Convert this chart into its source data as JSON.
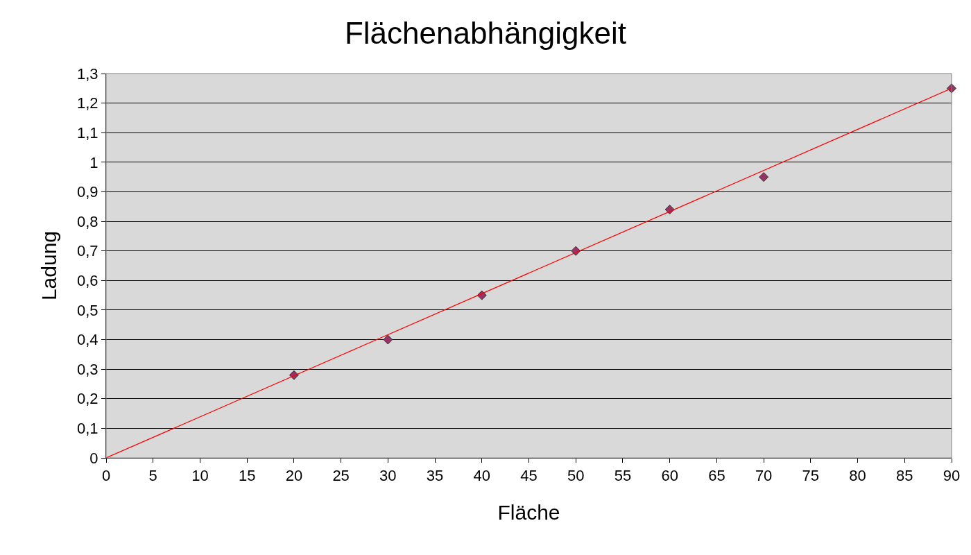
{
  "chart_data": {
    "type": "scatter",
    "title": "Flächenabhängigkeit",
    "xlabel": "Fläche",
    "ylabel": "Ladung",
    "series": [
      {
        "color": "#993366",
        "marker": "diamond",
        "x": [
          20,
          30,
          40,
          50,
          60,
          70,
          90
        ],
        "values": [
          0.28,
          0.4,
          0.55,
          0.7,
          0.84,
          0.95,
          1.25
        ]
      },
      {
        "type": "line",
        "color": "#ff0000",
        "marker": "none",
        "line_style": "solid",
        "x": [
          0,
          90
        ],
        "values": [
          0,
          1.25
        ]
      }
    ],
    "xlim": [
      0,
      90
    ],
    "xticks": [
      0,
      5,
      10,
      15,
      20,
      25,
      30,
      35,
      40,
      45,
      50,
      55,
      60,
      65,
      70,
      75,
      80,
      85,
      90
    ],
    "ylim": [
      0,
      1.3
    ],
    "yticks": [
      0,
      {
        "value": 0.1,
        "label": "0,1"
      },
      {
        "value": 0.2,
        "label": "0,2"
      },
      {
        "value": 0.3,
        "label": "0,3"
      },
      {
        "value": 0.4,
        "label": "0,4"
      },
      {
        "value": 0.5,
        "label": "0,5"
      },
      {
        "value": 0.6,
        "label": "0,6"
      },
      {
        "value": 0.7,
        "label": "0,7"
      },
      {
        "value": 0.8,
        "label": "0,8"
      },
      {
        "value": 0.9,
        "label": "0,9"
      },
      1,
      {
        "value": 1.1,
        "label": "1,1"
      },
      {
        "value": 1.2,
        "label": "1,2"
      },
      {
        "value": 1.3,
        "label": "1,3"
      }
    ],
    "grid": "y"
  }
}
